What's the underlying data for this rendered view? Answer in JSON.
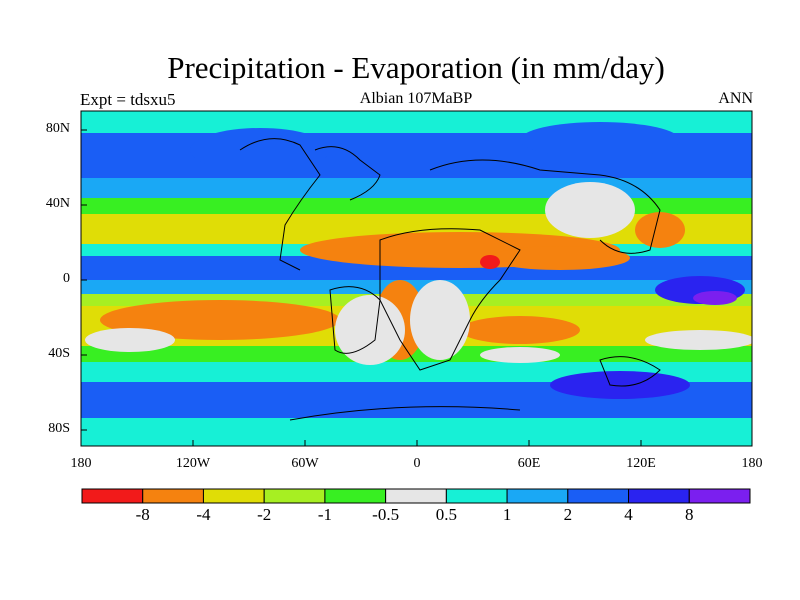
{
  "title": "Precipitation - Evaporation (in mm/day)",
  "subtitle_left": "Expt = tdsxu5",
  "subtitle_center": "Albian   107MaBP",
  "subtitle_right": "ANN",
  "lat_labels": [
    "80N",
    "40N",
    "0",
    "40S",
    "80S"
  ],
  "lon_labels": [
    "180",
    "120W",
    "60W",
    "0",
    "60E",
    "120E",
    "180"
  ],
  "colorbar": {
    "colors": [
      "#f21a1a",
      "#f5820f",
      "#e0dd06",
      "#a7ef22",
      "#38ef22",
      "#e6e6e6",
      "#17f0d6",
      "#1aa8f5",
      "#1a5ef5",
      "#2a23f0",
      "#7b1fef"
    ],
    "labels": [
      "-8",
      "-4",
      "-2",
      "-1",
      "-0.5",
      "0.5",
      "1",
      "2",
      "4",
      "8"
    ]
  }
}
